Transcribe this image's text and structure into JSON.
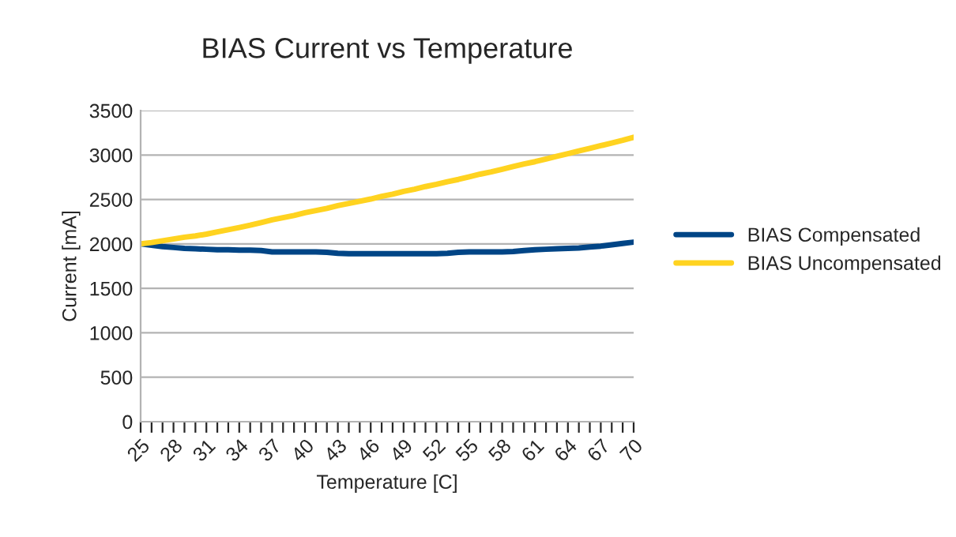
{
  "chart_data": {
    "type": "line",
    "title": "BIAS Current vs Temperature",
    "xlabel": "Temperature [C]",
    "ylabel": "Current [mA]",
    "categories": [
      "25",
      null,
      null,
      "28",
      null,
      null,
      "31",
      null,
      null,
      "34",
      null,
      null,
      "37",
      null,
      null,
      "40",
      null,
      null,
      "43",
      null,
      null,
      "46",
      null,
      null,
      "49",
      null,
      null,
      "52",
      null,
      null,
      "55",
      null,
      null,
      "58",
      null,
      null,
      "61",
      null,
      null,
      "64",
      null,
      null,
      "67",
      null,
      null,
      "70"
    ],
    "series": [
      {
        "name": "BIAS Compensated",
        "color": "#004586",
        "values": [
          2000,
          1985,
          1970,
          1960,
          1950,
          1945,
          1940,
          1935,
          1935,
          1930,
          1930,
          1925,
          1910,
          1910,
          1910,
          1910,
          1910,
          1905,
          1895,
          1890,
          1890,
          1890,
          1890,
          1890,
          1890,
          1890,
          1890,
          1890,
          1895,
          1905,
          1910,
          1910,
          1910,
          1910,
          1915,
          1925,
          1935,
          1940,
          1945,
          1950,
          1955,
          1965,
          1975,
          1990,
          2005,
          2020
        ]
      },
      {
        "name": "BIAS Uncompensated",
        "color": "#ffd320",
        "values": [
          2000,
          2015,
          2035,
          2055,
          2075,
          2090,
          2110,
          2135,
          2160,
          2185,
          2210,
          2240,
          2270,
          2295,
          2320,
          2350,
          2375,
          2400,
          2430,
          2455,
          2480,
          2505,
          2535,
          2560,
          2590,
          2615,
          2645,
          2670,
          2700,
          2725,
          2755,
          2785,
          2810,
          2840,
          2870,
          2900,
          2925,
          2955,
          2985,
          3015,
          3045,
          3075,
          3105,
          3135,
          3165,
          3200
        ]
      }
    ],
    "ylim": [
      0,
      3500
    ],
    "yticks": [
      0,
      500,
      1000,
      1500,
      2000,
      2500,
      3000,
      3500
    ],
    "grid": "y",
    "legend": "right",
    "line_style": "solid",
    "marker": "none"
  }
}
